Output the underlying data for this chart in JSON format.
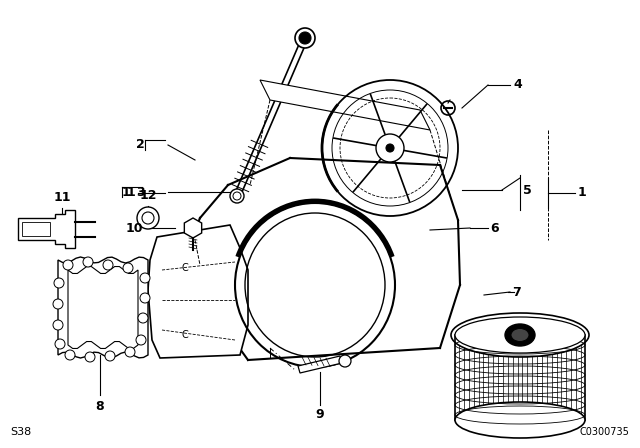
{
  "background_color": "#ffffff",
  "line_color": "#000000",
  "footer_left": "S38",
  "footer_right": "C0300735",
  "fig_width": 6.4,
  "fig_height": 4.48,
  "dpi": 100
}
